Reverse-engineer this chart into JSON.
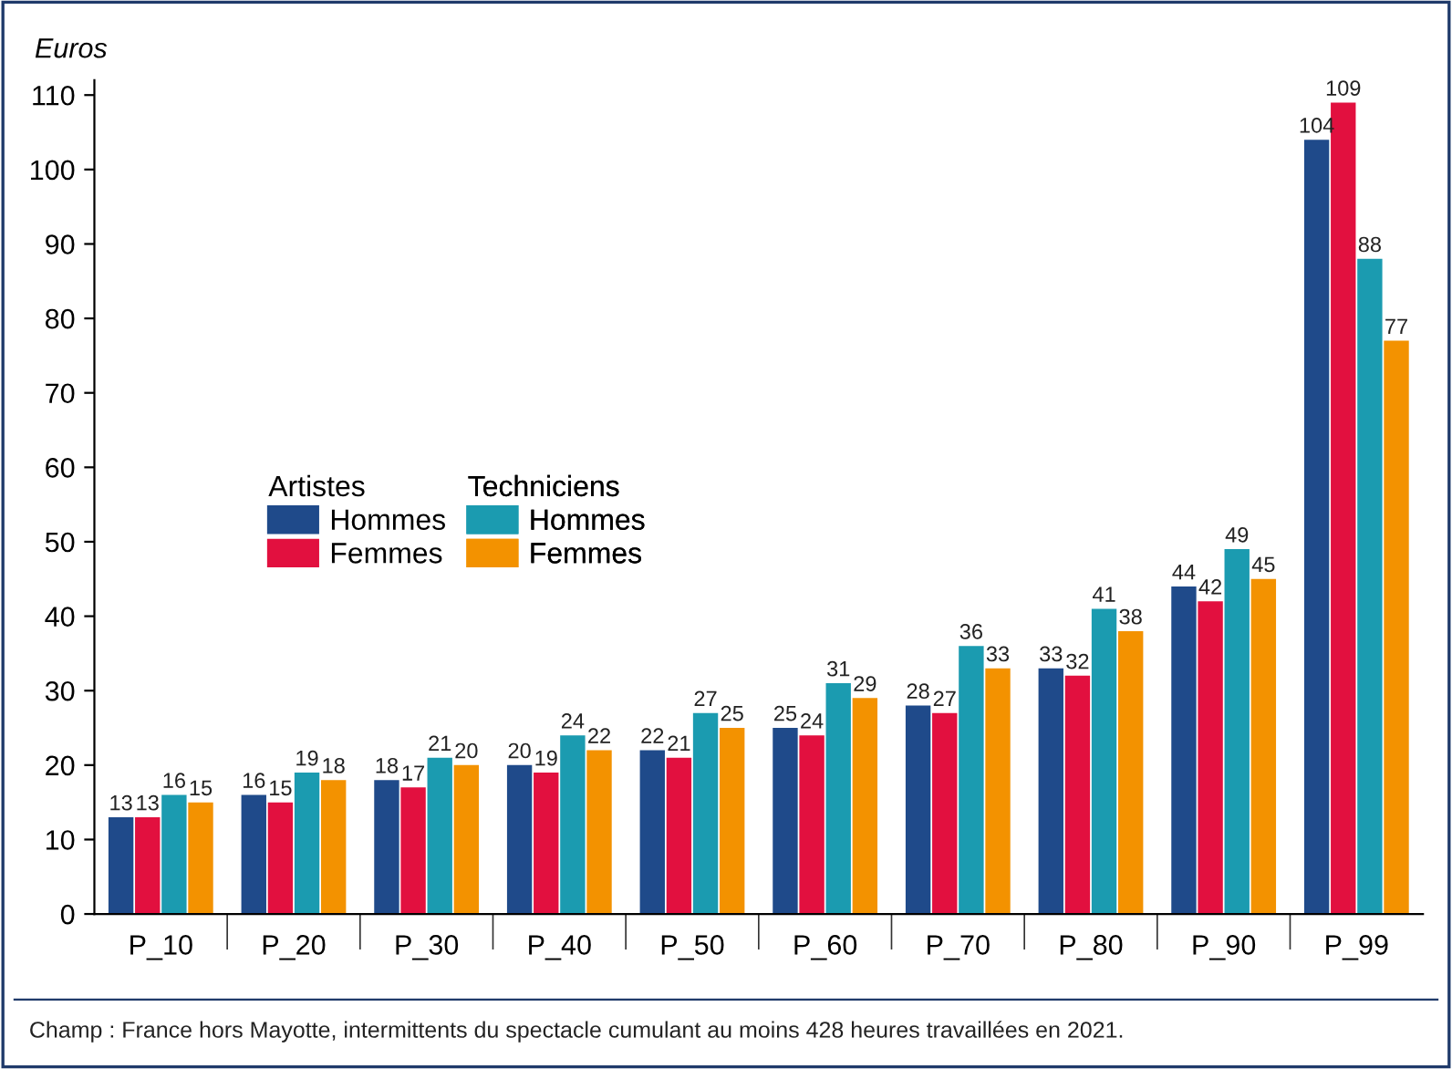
{
  "chart_data": {
    "type": "bar",
    "ylabel": "Euros",
    "categories": [
      "P_10",
      "P_20",
      "P_30",
      "P_40",
      "P_50",
      "P_60",
      "P_70",
      "P_80",
      "P_90",
      "P_99"
    ],
    "series": [
      {
        "name": "Hommes",
        "color": "#1f4a8a",
        "values": [
          13,
          16,
          18,
          20,
          22,
          25,
          28,
          33,
          44,
          104
        ]
      },
      {
        "name": "Femmes",
        "color": "#e2103f",
        "values": [
          13,
          15,
          17,
          19,
          21,
          24,
          27,
          32,
          42,
          109
        ]
      },
      {
        "name": "Hommes",
        "color": "#1b9bb0",
        "values": [
          16,
          19,
          21,
          24,
          27,
          31,
          36,
          41,
          49,
          88
        ]
      },
      {
        "name": "Femmes",
        "color": "#f39200",
        "values": [
          15,
          18,
          20,
          22,
          25,
          29,
          33,
          38,
          45,
          77
        ]
      }
    ],
    "ylim": [
      0,
      112
    ],
    "yticks": [
      0,
      10,
      20,
      30,
      40,
      50,
      60,
      70,
      80,
      90,
      100,
      110
    ],
    "data_labels": true,
    "grid": false,
    "legend": "left",
    "annotations": [
      "Artistes",
      "Techniciens",
      "Champ : France hors Mayotte, intermittents du spectacle cumulant au moins 428 heures travaillées en 2021."
    ]
  }
}
